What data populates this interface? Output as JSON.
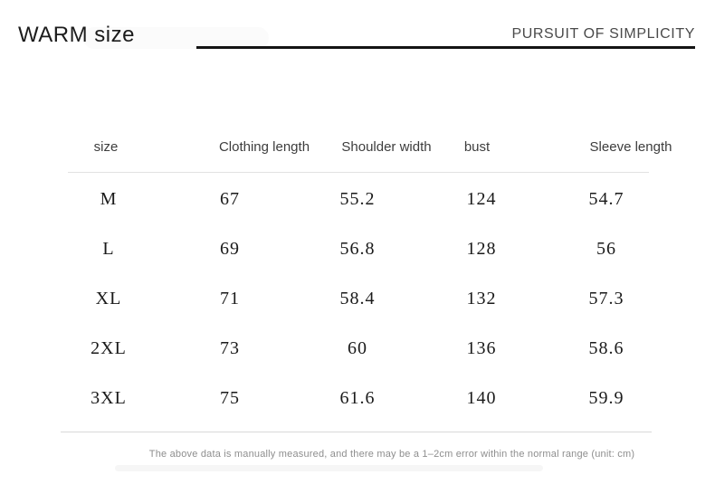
{
  "page": {
    "title": "WARM size",
    "tagline": "PURSUIT OF SIMPLICITY",
    "footnote": "The above data is manually measured, and there may be a 1–2cm error within the normal range (unit: cm)"
  },
  "chart_data": {
    "type": "table",
    "title": "WARM size",
    "unit": "cm",
    "columns": [
      "size",
      "Clothing length",
      "Shoulder width",
      "bust",
      "Sleeve length"
    ],
    "rows": [
      [
        "M",
        "67",
        "55.2",
        "124",
        "54.7"
      ],
      [
        "L",
        "69",
        "56.8",
        "128",
        "56"
      ],
      [
        "XL",
        "71",
        "58.4",
        "132",
        "57.3"
      ],
      [
        "2XL",
        "73",
        "60",
        "136",
        "58.6"
      ],
      [
        "3XL",
        "75",
        "61.6",
        "140",
        "59.9"
      ]
    ]
  },
  "colors": {
    "divider_dark": "#141414",
    "divider_light": "#e2e2e2",
    "text_primary": "#1a1a1a",
    "text_secondary": "#4a4a4a",
    "text_muted": "#8e8e8e"
  }
}
